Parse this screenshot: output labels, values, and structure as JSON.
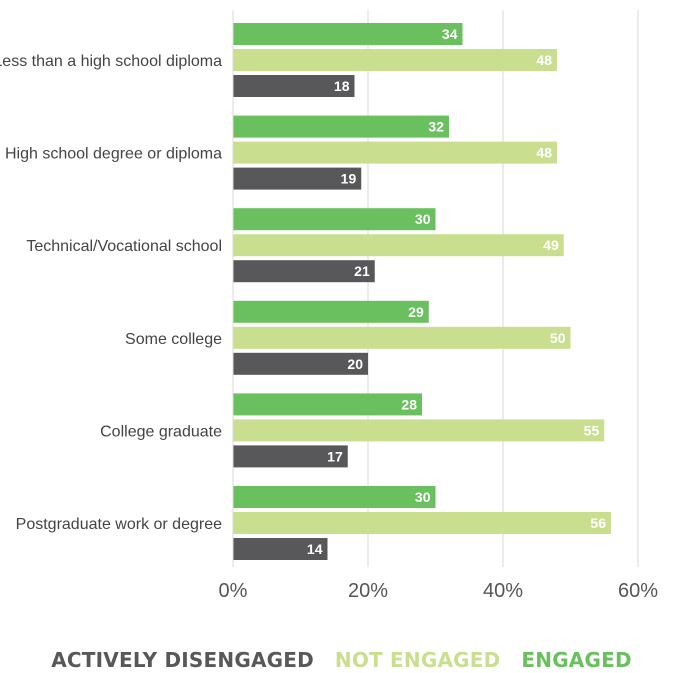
{
  "colors": {
    "engaged": "#6abf5f",
    "not_engaged": "#c9df8f",
    "actively_disengaged": "#58585a",
    "grid": "#d9d9d9"
  },
  "legend": {
    "actively_disengaged": "ACTIVELY DISENGAGED",
    "not_engaged": "NOT ENGAGED",
    "engaged": "ENGAGED"
  },
  "chart_data": {
    "type": "bar",
    "orientation": "horizontal",
    "categories": [
      "Less than a high school diploma",
      "High school degree or diploma",
      "Technical/Vocational school",
      "Some college",
      "College graduate",
      "Postgraduate work or degree"
    ],
    "series": [
      {
        "name": "ENGAGED",
        "values": [
          34,
          32,
          30,
          29,
          28,
          30
        ]
      },
      {
        "name": "NOT ENGAGED",
        "values": [
          48,
          48,
          49,
          50,
          55,
          56
        ]
      },
      {
        "name": "ACTIVELY DISENGAGED",
        "values": [
          18,
          19,
          21,
          20,
          17,
          14
        ]
      }
    ],
    "x_ticks": [
      "0%",
      "20%",
      "40%",
      "60%"
    ],
    "xlim": [
      0,
      65
    ],
    "grid": true,
    "legend_position": "bottom"
  }
}
